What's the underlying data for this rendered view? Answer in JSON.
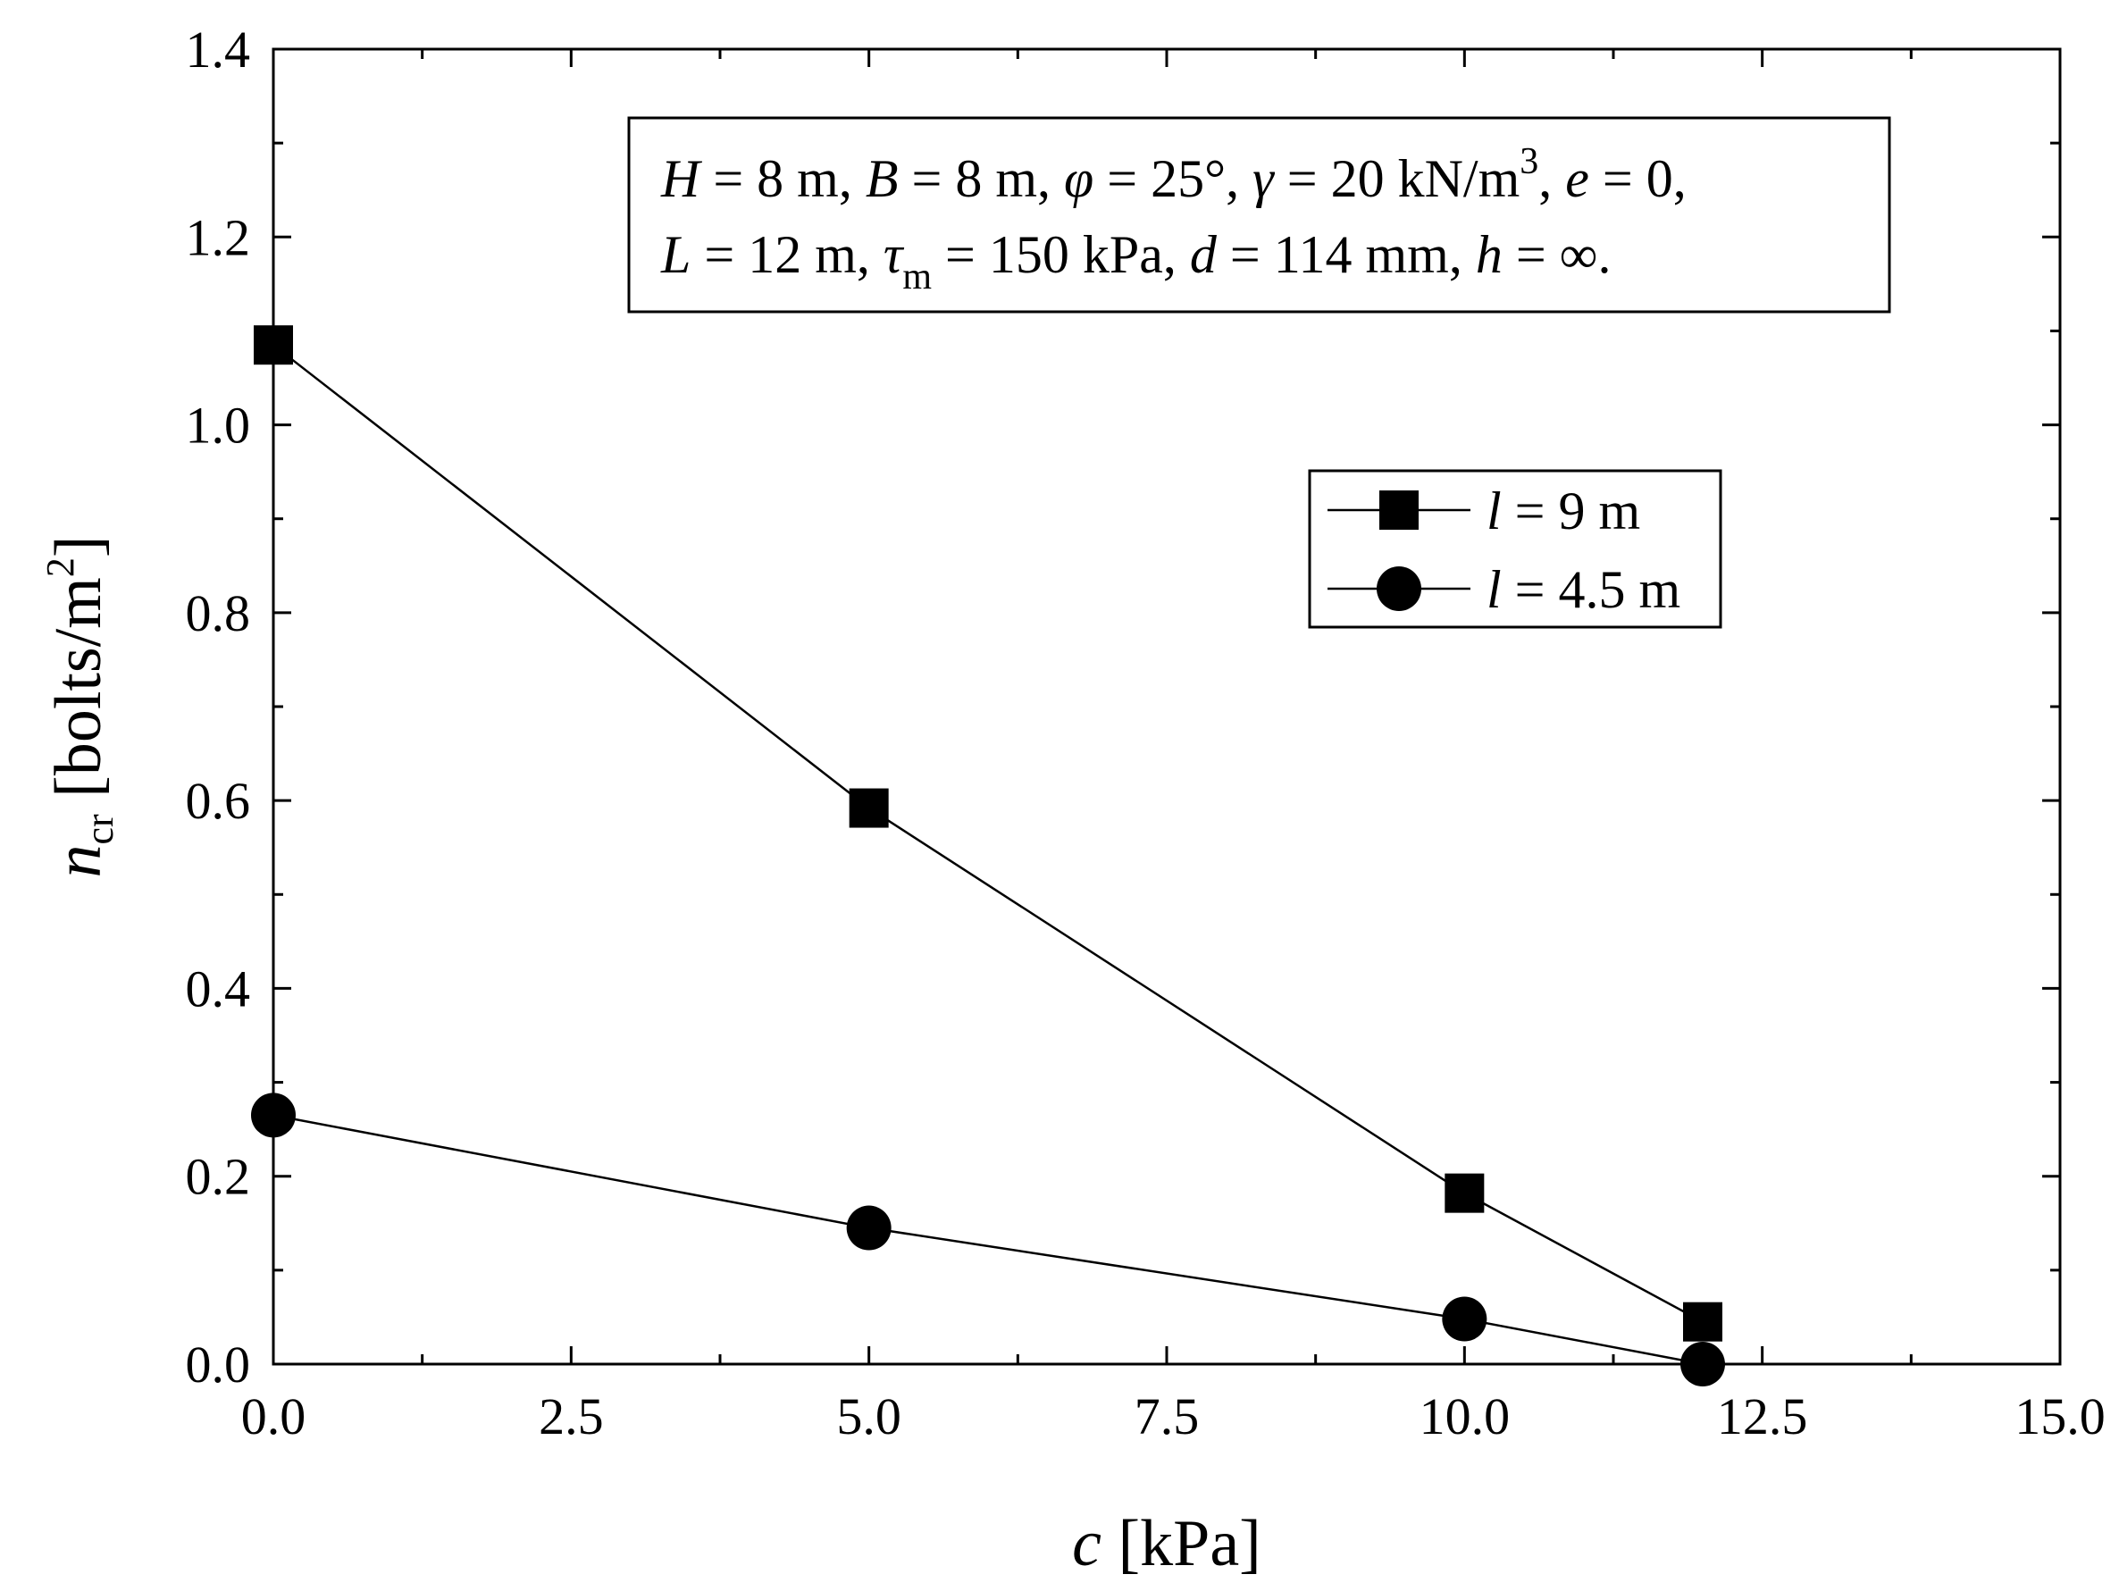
{
  "chart_data": {
    "type": "line",
    "xlabel": {
      "var": "c",
      "unit": " [kPa]"
    },
    "ylabel": {
      "var": "n",
      "sub": "cr",
      "unit": " [bolts/m",
      "sup": "2",
      "close": "]"
    },
    "xlim": [
      0,
      15
    ],
    "ylim": [
      0,
      1.4
    ],
    "xticks": [
      "0.0",
      "2.5",
      "5.0",
      "7.5",
      "10.0",
      "12.5",
      "15.0"
    ],
    "yticks": [
      "0.0",
      "0.2",
      "0.4",
      "0.6",
      "0.8",
      "1.0",
      "1.2",
      "1.4"
    ],
    "grid": false,
    "legend_position": "center-right",
    "annotation": {
      "line1": [
        {
          "t": "H",
          "i": true
        },
        {
          "t": " = 8 m, "
        },
        {
          "t": "B",
          "i": true
        },
        {
          "t": " = 8 m, "
        },
        {
          "t": "φ",
          "i": true
        },
        {
          "t": " = 25°, "
        },
        {
          "t": "γ",
          "i": true
        },
        {
          "t": " = 20 kN/m"
        },
        {
          "t": "3",
          "sup": true
        },
        {
          "t": ", "
        },
        {
          "t": "e",
          "i": true
        },
        {
          "t": " = 0,"
        }
      ],
      "line2": [
        {
          "t": "L",
          "i": true
        },
        {
          "t": " = 12 m, "
        },
        {
          "t": "τ",
          "i": true
        },
        {
          "t": "m",
          "sub": true
        },
        {
          "t": " = 150 kPa, "
        },
        {
          "t": "d",
          "i": true
        },
        {
          "t": " = 114 mm, "
        },
        {
          "t": "h",
          "i": true
        },
        {
          "t": " = ∞."
        }
      ]
    },
    "series": [
      {
        "name": "l = 9 m",
        "legend_var": "l",
        "legend_rest": " = 9 m",
        "marker": "square",
        "x": [
          0,
          5,
          10,
          12
        ],
        "y": [
          1.085,
          0.592,
          0.182,
          0.045
        ]
      },
      {
        "name": "l = 4.5 m",
        "legend_var": "l",
        "legend_rest": " = 4.5 m",
        "marker": "circle",
        "x": [
          0,
          5,
          10,
          12
        ],
        "y": [
          0.265,
          0.145,
          0.048,
          0.0
        ]
      }
    ]
  }
}
